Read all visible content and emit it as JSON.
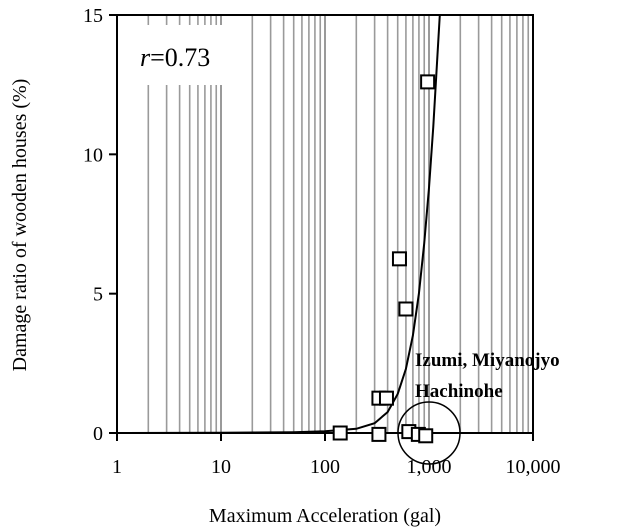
{
  "chart_data": {
    "type": "scatter",
    "title": "",
    "xlabel": "Maximum Acceleration (gal)",
    "ylabel": "Damage ratio of wooden houses (%)",
    "x_scale": "log",
    "xlim": [
      1,
      10000
    ],
    "ylim": [
      0,
      15
    ],
    "x_ticks": [
      1,
      10,
      100,
      1000,
      10000
    ],
    "x_tick_labels": [
      "1",
      "10",
      "100",
      "1,000",
      "10,000"
    ],
    "y_ticks": [
      0,
      5,
      10,
      15
    ],
    "y_tick_labels": [
      "0",
      "5",
      "10",
      "15"
    ],
    "grid": "vertical minor and major lines on log x-axis",
    "series": [
      {
        "marker": "open square",
        "points": [
          {
            "x": 140,
            "y": 0.0
          },
          {
            "x": 330,
            "y": -0.05
          },
          {
            "x": 330,
            "y": 1.25
          },
          {
            "x": 390,
            "y": 1.25
          },
          {
            "x": 520,
            "y": 6.25
          },
          {
            "x": 600,
            "y": 4.45
          },
          {
            "x": 640,
            "y": 0.05
          },
          {
            "x": 790,
            "y": -0.05
          },
          {
            "x": 930,
            "y": -0.1
          },
          {
            "x": 970,
            "y": 12.6
          }
        ]
      }
    ],
    "fit_curve": {
      "points": [
        {
          "x": 1,
          "y": 0.0
        },
        {
          "x": 10,
          "y": 0.01
        },
        {
          "x": 50,
          "y": 0.03
        },
        {
          "x": 100,
          "y": 0.06
        },
        {
          "x": 200,
          "y": 0.15
        },
        {
          "x": 300,
          "y": 0.35
        },
        {
          "x": 400,
          "y": 0.75
        },
        {
          "x": 500,
          "y": 1.4
        },
        {
          "x": 600,
          "y": 2.3
        },
        {
          "x": 700,
          "y": 3.5
        },
        {
          "x": 800,
          "y": 5.0
        },
        {
          "x": 900,
          "y": 6.8
        },
        {
          "x": 1000,
          "y": 8.8
        },
        {
          "x": 1100,
          "y": 11.0
        },
        {
          "x": 1200,
          "y": 13.4
        },
        {
          "x": 1270,
          "y": 15.0
        }
      ]
    },
    "annotations": {
      "r_symbol": "r",
      "r_value": "=0.73",
      "label_line1": "Izumi, Miyanojyo",
      "label_line2": "Hachinohe",
      "circle_center": {
        "x": 1000,
        "y": 0
      }
    }
  }
}
